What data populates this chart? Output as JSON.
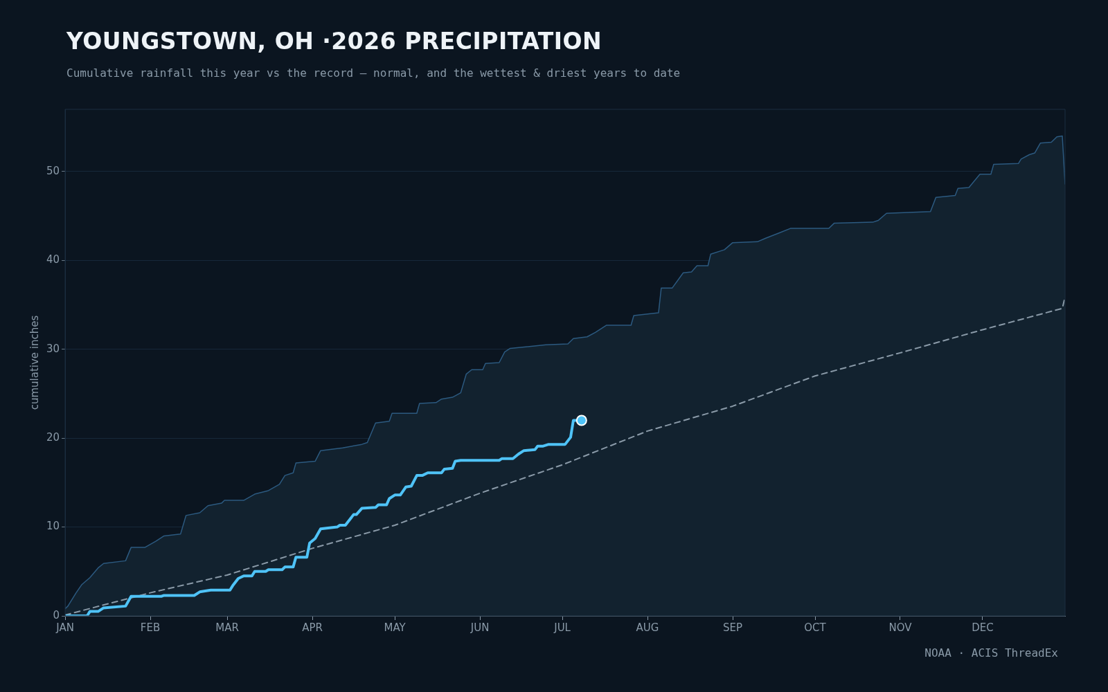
{
  "chart_data": {
    "type": "line",
    "title": "YOUNGSTOWN, OH ·2026 PRECIPITATION",
    "subtitle": "Cumulative rainfall this year vs the record — normal, and the wettest & driest years to date",
    "ylabel": "cumulative inches",
    "annotations": [
      "NOAA · ACIS ThreadEx"
    ],
    "xlim": [
      "--01-01",
      "--12-31"
    ],
    "xticks": [
      {
        "value": "--01-01",
        "label": "JAN"
      },
      {
        "value": "--02-01",
        "label": "FEB"
      },
      {
        "value": "--03-01",
        "label": "MAR"
      },
      {
        "value": "--04-01",
        "label": "APR"
      },
      {
        "value": "--05-01",
        "label": "MAY"
      },
      {
        "value": "--06-01",
        "label": "JUN"
      },
      {
        "value": "--07-01",
        "label": "JUL"
      },
      {
        "value": "--08-01",
        "label": "AUG"
      },
      {
        "value": "--09-01",
        "label": "SEP"
      },
      {
        "value": "--10-01",
        "label": "OCT"
      },
      {
        "value": "--11-01",
        "label": "NOV"
      },
      {
        "value": "--12-01",
        "label": "DEC"
      }
    ],
    "ylim": [
      0,
      57
    ],
    "yticks": [
      0,
      10,
      20,
      30,
      40,
      50
    ],
    "grid": "y",
    "legend": false,
    "marker": "none",
    "series": [
      {
        "type": "area",
        "color": "#2c5a80",
        "x": [
          "--01-01",
          "--01-02",
          "--01-05",
          "--01-07",
          "--01-10",
          "--01-13",
          "--01-15",
          "--01-23",
          "--01-25",
          "--01-30",
          "--02-03",
          "--02-06",
          "--02-12",
          "--02-14",
          "--02-19",
          "--02-22",
          "--02-27",
          "--02-28",
          "--03-07",
          "--03-11",
          "--03-16",
          "--03-20",
          "--03-22",
          "--03-25",
          "--03-26",
          "--04-02",
          "--04-04",
          "--04-12",
          "--04-19",
          "--04-21",
          "--04-24",
          "--04-29",
          "--04-30",
          "--05-09",
          "--05-10",
          "--05-16",
          "--05-18",
          "--05-22",
          "--05-25",
          "--05-27",
          "--05-29",
          "--06-02",
          "--06-03",
          "--06-08",
          "--06-10",
          "--06-12",
          "--06-25",
          "--07-03",
          "--07-05",
          "--07-10",
          "--07-13",
          "--07-17",
          "--07-26",
          "--07-27",
          "--08-05",
          "--08-06",
          "--08-10",
          "--08-14",
          "--08-17",
          "--08-19",
          "--08-23",
          "--08-24",
          "--08-29",
          "--09-01",
          "--09-10",
          "--09-13",
          "--09-18",
          "--09-22",
          "--10-06",
          "--10-08",
          "--10-22",
          "--10-24",
          "--10-27",
          "--11-12",
          "--11-14",
          "--11-21",
          "--11-22",
          "--11-26",
          "--11-30",
          "--12-04",
          "--12-05",
          "--12-14",
          "--12-15",
          "--12-18",
          "--12-20",
          "--12-22",
          "--12-26",
          "--12-28",
          "--12-30",
          "--12-31"
        ],
        "values": [
          0.8,
          1.1,
          2.6,
          3.5,
          4.3,
          5.4,
          5.9,
          6.2,
          7.7,
          7.7,
          8.4,
          9.0,
          9.2,
          11.3,
          11.6,
          12.4,
          12.7,
          13.0,
          13.0,
          13.7,
          14.1,
          14.8,
          15.8,
          16.1,
          17.2,
          17.4,
          18.6,
          18.9,
          19.3,
          19.5,
          21.7,
          21.9,
          22.8,
          22.8,
          23.9,
          24.0,
          24.4,
          24.6,
          25.1,
          27.2,
          27.7,
          27.7,
          28.4,
          28.5,
          29.7,
          30.1,
          30.5,
          30.6,
          31.2,
          31.4,
          31.9,
          32.7,
          32.7,
          33.8,
          34.1,
          36.9,
          36.9,
          38.6,
          38.7,
          39.4,
          39.4,
          40.7,
          41.2,
          42.0,
          42.1,
          42.5,
          43.1,
          43.6,
          43.6,
          44.2,
          44.3,
          44.5,
          45.3,
          45.5,
          47.1,
          47.3,
          48.1,
          48.2,
          49.7,
          49.7,
          50.8,
          50.9,
          51.4,
          51.9,
          52.1,
          53.2,
          53.3,
          53.9,
          54.0,
          48.6
        ]
      },
      {
        "color": "#8a9aa8",
        "line_style": "dashed",
        "x": [
          "--01-01",
          "--02-01",
          "--03-01",
          "--04-01",
          "--05-01",
          "--06-01",
          "--07-01",
          "--08-01",
          "--09-01",
          "--10-01",
          "--11-01",
          "--12-01",
          "--12-30",
          "--12-31"
        ],
        "values": [
          0.1,
          2.6,
          4.6,
          7.6,
          10.2,
          13.8,
          17.0,
          20.8,
          23.6,
          27.0,
          29.6,
          32.2,
          34.6,
          35.9
        ]
      },
      {
        "color": "#4fc3f7",
        "line_style": "solid",
        "x": [
          "--01-01",
          "--01-09",
          "--01-10",
          "--01-13",
          "--01-15",
          "--01-23",
          "--01-25",
          "--02-05",
          "--02-06",
          "--02-17",
          "--02-19",
          "--02-23",
          "--03-02",
          "--03-03",
          "--03-05",
          "--03-07",
          "--03-10",
          "--03-11",
          "--03-15",
          "--03-16",
          "--03-21",
          "--03-22",
          "--03-25",
          "--03-26",
          "--03-30",
          "--03-31",
          "--04-02",
          "--04-04",
          "--04-10",
          "--04-11",
          "--04-13",
          "--04-16",
          "--04-17",
          "--04-19",
          "--04-24",
          "--04-25",
          "--04-28",
          "--04-29",
          "--05-01",
          "--05-03",
          "--05-05",
          "--05-07",
          "--05-09",
          "--05-11",
          "--05-13",
          "--05-18",
          "--05-19",
          "--05-22",
          "--05-23",
          "--05-25",
          "--06-08",
          "--06-09",
          "--06-13",
          "--06-15",
          "--06-17",
          "--06-21",
          "--06-22",
          "--06-24",
          "--06-26",
          "--07-02",
          "--07-04",
          "--07-05",
          "--07-08"
        ],
        "values": [
          0,
          0,
          0.5,
          0.5,
          0.9,
          1.1,
          2.2,
          2.2,
          2.3,
          2.3,
          2.7,
          2.9,
          2.9,
          3.4,
          4.2,
          4.5,
          4.5,
          5.0,
          5.0,
          5.2,
          5.2,
          5.5,
          5.5,
          6.6,
          6.6,
          8.2,
          8.7,
          9.8,
          10.0,
          10.2,
          10.2,
          11.4,
          11.4,
          12.1,
          12.2,
          12.5,
          12.5,
          13.2,
          13.6,
          13.6,
          14.5,
          14.6,
          15.8,
          15.8,
          16.1,
          16.1,
          16.5,
          16.6,
          17.4,
          17.5,
          17.5,
          17.7,
          17.7,
          18.2,
          18.6,
          18.7,
          19.1,
          19.1,
          19.3,
          19.3,
          20.1,
          22.0,
          22.0
        ]
      },
      {
        "type": "scatter",
        "color": "#4fc3f7",
        "marker": "circle",
        "x": [
          "--07-08"
        ],
        "values": [
          22.0
        ]
      }
    ]
  }
}
